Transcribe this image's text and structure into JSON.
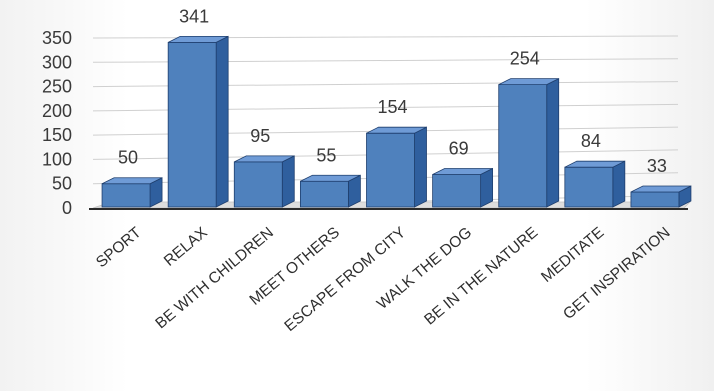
{
  "chart_data": {
    "type": "bar",
    "style": "3d-column",
    "categories": [
      "SPORT",
      "RELAX",
      "BE WITH CHILDREN",
      "MEET OTHERS",
      "ESCAPE FROM CITY",
      "WALK THE DOG",
      "BE IN THE NATURE",
      "MEDITATE",
      "GET INSPIRATION"
    ],
    "values": [
      50,
      341,
      95,
      55,
      154,
      69,
      254,
      84,
      33
    ],
    "data_labels": [
      "50",
      "341",
      "95",
      "55",
      "154",
      "69",
      "254",
      "84",
      "33"
    ],
    "yticks": [
      "0",
      "50",
      "100",
      "150",
      "200",
      "250",
      "300",
      "350"
    ],
    "ylim": [
      0,
      350
    ],
    "grid": true,
    "legend": "none",
    "colors": {
      "bar_front": "#4f81bd",
      "bar_top": "#6f9bd6",
      "bar_side": "#2f5f9e",
      "bar_edge": "#1f3f6e",
      "gridline": "#d0d0d0",
      "floor": "#dedede",
      "text": "#3a3a3a"
    }
  }
}
